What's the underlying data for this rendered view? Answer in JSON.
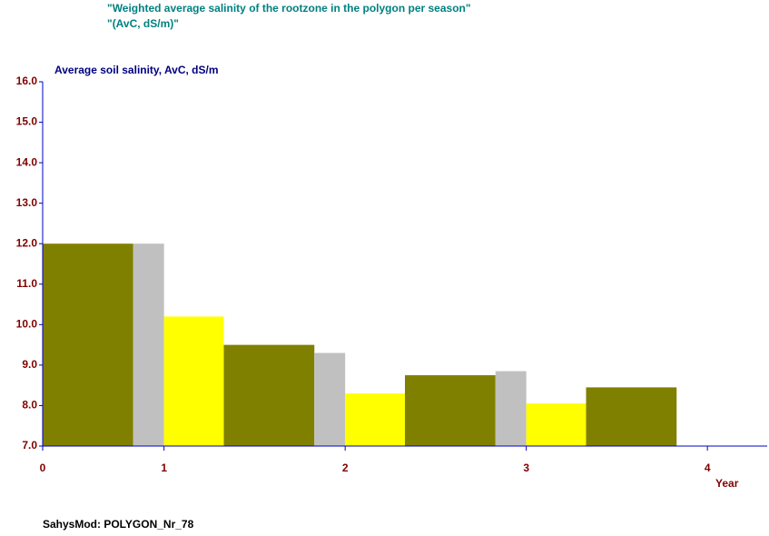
{
  "chart_data": {
    "type": "histogram",
    "title": [
      "\"Weighted average salinity of the rootzone  in the polygon per season\"",
      "\"(AvC, dS/m)\""
    ],
    "y_label": "Average soil salinity, AvC,  dS/m",
    "x_label": "Year",
    "bins": [
      0,
      0.5,
      0.67,
      1,
      1.5,
      1.67,
      2,
      2.5,
      2.67,
      3,
      3.5
    ],
    "values": [
      12.0,
      12.0,
      10.2,
      9.5,
      9.3,
      8.3,
      8.75,
      8.85,
      8.05,
      8.45
    ],
    "colors": [
      "#808000",
      "#c0c0c0",
      "#ffff00",
      "#808000",
      "#c0c0c0",
      "#ffff00",
      "#808000",
      "#c0c0c0",
      "#ffff00",
      "#808000"
    ],
    "xlim": [
      0,
      4
    ],
    "xticks": [
      0,
      {
        "value": 0.67,
        "label": "1"
      },
      {
        "value": 1.67,
        "label": "2"
      },
      {
        "value": 2.67,
        "label": "3"
      },
      {
        "value": 3.67,
        "label": "4"
      }
    ],
    "ylim": [
      7,
      16
    ],
    "yticks": [
      {
        "value": 7,
        "label": "7.0"
      },
      {
        "value": 8,
        "label": "8.0"
      },
      {
        "value": 9,
        "label": "9.0"
      },
      {
        "value": 10,
        "label": "10.0"
      },
      {
        "value": 11,
        "label": "11.0"
      },
      {
        "value": 12,
        "label": "12.0"
      },
      {
        "value": 13,
        "label": "13.0"
      },
      {
        "value": 14,
        "label": "14.0"
      },
      {
        "value": 15,
        "label": "15.0"
      },
      {
        "value": 16,
        "label": "16.0"
      }
    ]
  },
  "footer": "SahysMod: POLYGON_Nr_78"
}
